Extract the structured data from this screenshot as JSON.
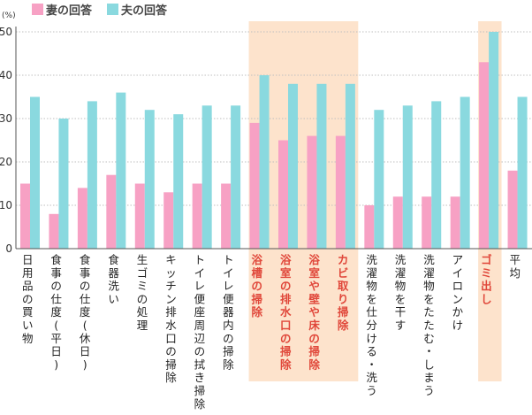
{
  "chart_data": {
    "type": "bar",
    "unit_label": "(%)",
    "ylim": [
      0,
      50
    ],
    "yticks": [
      0,
      10,
      20,
      30,
      40,
      50
    ],
    "grid": true,
    "legend_position": "top-left",
    "categories": [
      "日用品の買い物",
      "食事の仕度(平日)",
      "食事の仕度(休日)",
      "食器洗い",
      "生ゴミの処理",
      "キッチン排水口の掃除",
      "トイレ便座周辺の拭き掃除",
      "トイレ便器内の掃除",
      "浴槽の掃除",
      "浴室の排水口の掃除",
      "浴室や壁や床の掃除",
      "カビ取り掃除",
      "洗濯物を仕分ける・洗う",
      "洗濯物を干す",
      "洗濯物をたたむ・しまう",
      "アイロンかけ",
      "ゴミ出し",
      "平均"
    ],
    "highlighted_categories": [
      "浴槽の掃除",
      "浴室の排水口の掃除",
      "浴室や壁や床の掃除",
      "カビ取り掃除",
      "ゴミ出し"
    ],
    "series": [
      {
        "name": "妻の回答",
        "color": "#f7a1c4",
        "values": [
          15,
          8,
          14,
          17,
          15,
          13,
          15,
          15,
          29,
          25,
          26,
          26,
          10,
          12,
          12,
          12,
          43,
          18
        ]
      },
      {
        "name": "夫の回答",
        "color": "#8ad9df",
        "values": [
          35,
          30,
          34,
          36,
          32,
          31,
          33,
          33,
          40,
          38,
          38,
          38,
          32,
          33,
          34,
          35,
          50,
          35
        ]
      }
    ],
    "highlight_color": "#fde3cc",
    "highlight_text_color": "#e0473a"
  }
}
